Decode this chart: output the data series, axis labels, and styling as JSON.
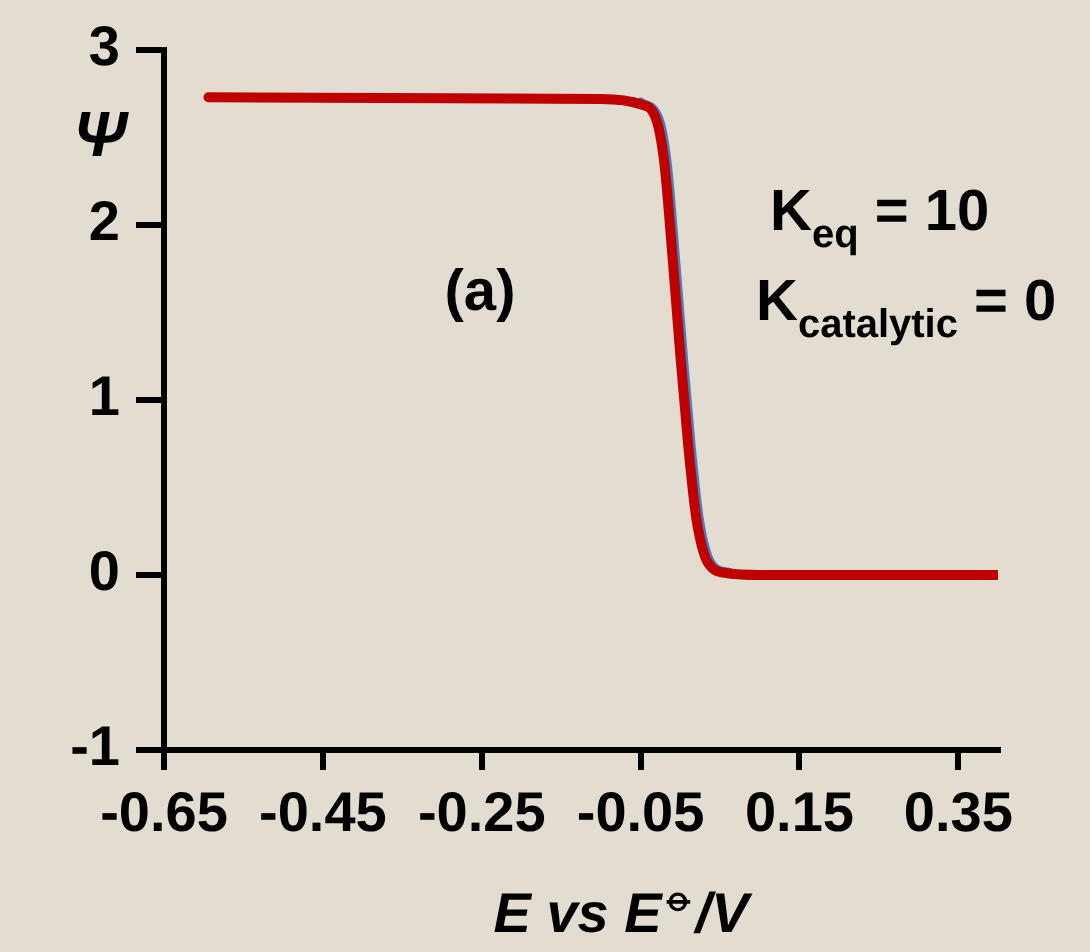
{
  "chart_data": {
    "type": "line",
    "xlabel": "E vs E$^{⦵}$/V",
    "ylabel": "Ψ",
    "annotations": [
      "(a)",
      "K$_{eq}$ = 10",
      "K$_{catalytic}$ = 0"
    ],
    "xlim": [
      -0.65,
      0.4
    ],
    "xticks": [
      -0.65,
      -0.45,
      -0.25,
      -0.05,
      0.15,
      0.35
    ],
    "ylim": [
      -1,
      3
    ],
    "yticks": [
      -1,
      0,
      1,
      2,
      3
    ],
    "grid": false,
    "legend": false,
    "marker": "none",
    "line_style": "solid",
    "series": [
      {
        "color": "#c00000",
        "x": [
          -0.594,
          -0.1,
          -0.05,
          -0.03,
          -0.02,
          -0.01,
          0,
          0.01,
          0.02,
          0.03,
          0.04,
          0.06,
          0.1,
          0.4
        ],
        "values": [
          2.73,
          2.72,
          2.69,
          2.6,
          2.35,
          1.83,
          1.26,
          0.74,
          0.33,
          0.12,
          0.04,
          0.01,
          0,
          0
        ]
      },
      {
        "color": "#4a7ebb",
        "x": [
          -0.05,
          -0.027,
          -0.017,
          -0.007,
          0.003,
          0.013,
          0.023,
          0.033,
          0.043,
          0.063
        ],
        "values": [
          2.7,
          2.6,
          2.35,
          1.83,
          1.26,
          0.74,
          0.33,
          0.12,
          0.04,
          0.01
        ]
      }
    ]
  }
}
